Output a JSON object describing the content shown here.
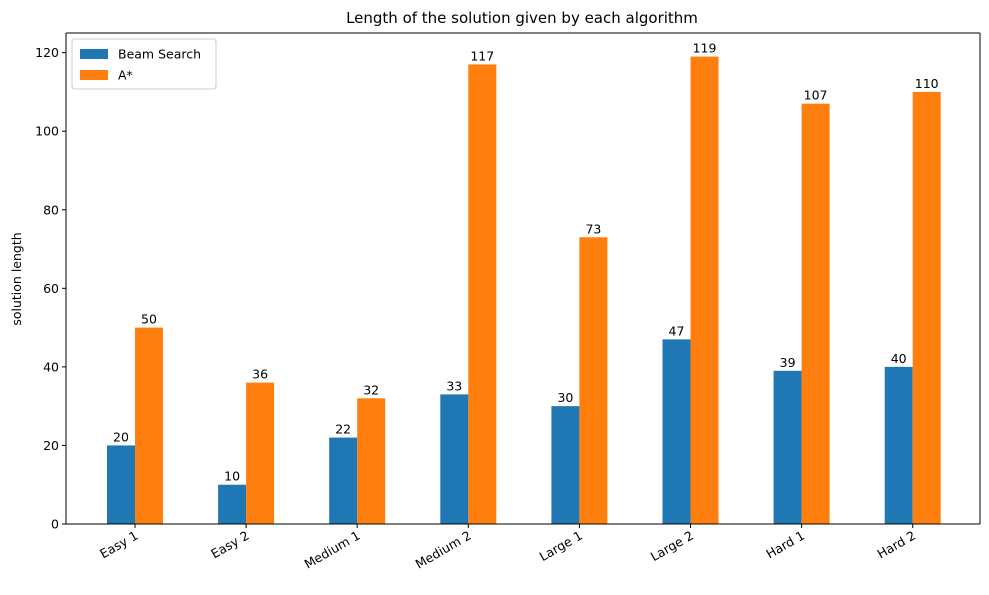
{
  "chart_data": {
    "type": "bar",
    "title": "Length of the solution given by each algorithm",
    "xlabel": "",
    "ylabel": "solution length",
    "categories": [
      "Easy 1",
      "Easy 2",
      "Medium 1",
      "Medium 2",
      "Large 1",
      "Large 2",
      "Hard 1",
      "Hard 2"
    ],
    "series": [
      {
        "name": "Beam Search",
        "color": "#1f77b4",
        "values": [
          20,
          10,
          22,
          33,
          30,
          47,
          39,
          40
        ]
      },
      {
        "name": "A*",
        "color": "#ff7f0e",
        "values": [
          50,
          36,
          32,
          117,
          73,
          119,
          107,
          110
        ]
      }
    ],
    "ylim": [
      0,
      125
    ],
    "yticks": [
      0,
      20,
      40,
      60,
      80,
      100,
      120
    ],
    "grid": false,
    "legend_position": "top-left",
    "data_labels": true,
    "xtick_rotation_deg": -30
  }
}
